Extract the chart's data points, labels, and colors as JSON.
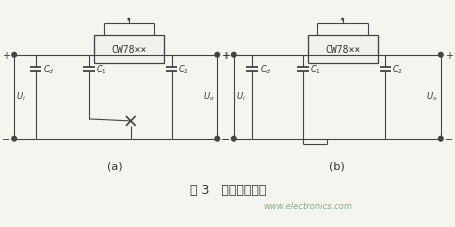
{
  "title": "图 3   避免共阻抗路",
  "subtitle": "www.electronics.com",
  "bg_color": "#f5f5f0",
  "fig_width": 4.55,
  "fig_height": 2.28,
  "dpi": 100,
  "label_a": "(a)",
  "label_b": "(b)",
  "chip_label": "CW78××",
  "text_color": "#333333",
  "line_color": "#444444"
}
